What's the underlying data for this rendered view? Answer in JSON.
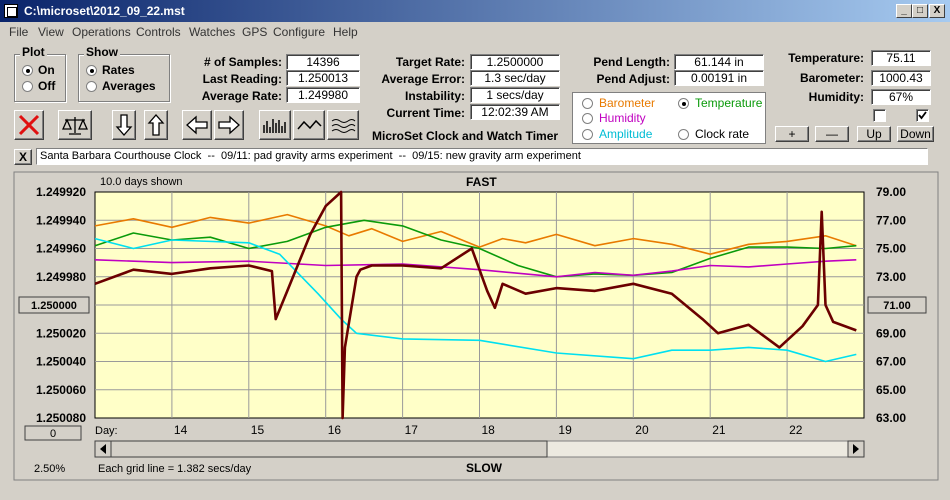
{
  "window": {
    "title": "C:\\microset\\2012_09_22.mst",
    "min": "_",
    "max": "□",
    "close": "X"
  },
  "menu": [
    "File",
    "View",
    "Operations",
    "Controls",
    "Watches",
    "GPS",
    "Configure",
    "Help"
  ],
  "plot": {
    "label": "Plot",
    "on": "On",
    "off": "Off",
    "selected": "On"
  },
  "show": {
    "label": "Show",
    "rates": "Rates",
    "averages": "Averages",
    "selected": "Rates"
  },
  "stats": {
    "samples_label": "# of Samples:",
    "samples": "14396",
    "last_label": "Last Reading:",
    "last": "1.250013",
    "avg_label": "Average Rate:",
    "avg": "1.249980"
  },
  "rates": {
    "target_label": "Target Rate:",
    "target": "1.2500000",
    "error_label": "Average Error:",
    "error": "1.3 sec/day",
    "instab_label": "Instability:",
    "instab": "1 secs/day",
    "time_label": "Current Time:",
    "time": "12:02:39 AM"
  },
  "pend": {
    "length_label": "Pend Length:",
    "length": "61.144 in",
    "adjust_label": "Pend Adjust:",
    "adjust": "0.00191 in"
  },
  "env": {
    "temp_label": "Temperature:",
    "temp": "75.11",
    "baro_label": "Barometer:",
    "baro": "1000.43",
    "hum_label": "Humidity:",
    "hum": "67%"
  },
  "sensors": [
    {
      "name": "Barometer",
      "color": "#e87a00",
      "selected": false
    },
    {
      "name": "Temperature",
      "color": "#0a9a0a",
      "selected": true
    },
    {
      "name": "Humidity",
      "color": "#c000c0",
      "selected": false
    },
    {
      "name": "Clock rate",
      "color": "#000000",
      "selected": false
    },
    {
      "name": "Amplitude",
      "color": "#00bcd4",
      "selected": false
    }
  ],
  "app_title": "MicroSet Clock and Watch Timer",
  "right_buttons": {
    "plus": "+",
    "minus": "—",
    "up": "Up",
    "down": "Down"
  },
  "checks": {
    "left": false,
    "right": true
  },
  "notes": "Santa Barbara Courthouse Clock  --  09/11: pad gravity arms experiment  --  09/15: new gravity arm experiment",
  "notes_close": "X",
  "chart_labels": {
    "days_shown": "10.0 days shown",
    "fast": "FAST",
    "slow": "SLOW",
    "grid_note": "Each grid line = 1.382 secs/day",
    "percent": "2.50%",
    "left_center": "1.250000",
    "right_center": "71.00",
    "zero_btn": "0",
    "day_prefix": "Day:"
  },
  "chart_data": {
    "type": "line",
    "x_ticks": [
      "14",
      "15",
      "16",
      "17",
      "18",
      "19",
      "20",
      "21",
      "22"
    ],
    "y_left_ticks": [
      "1.249920",
      "1.249940",
      "1.249960",
      "1.249980",
      "1.250000",
      "1.250020",
      "1.250040",
      "1.250060",
      "1.250080"
    ],
    "y_right_ticks": [
      "79.00",
      "77.00",
      "75.00",
      "73.00",
      "71.00",
      "69.00",
      "67.00",
      "65.00",
      "63.00"
    ],
    "x_range": [
      13.0,
      23.0
    ],
    "left_range": [
      1.24992,
      1.25008
    ],
    "right_range": [
      63,
      79
    ],
    "series": [
      {
        "name": "Barometer",
        "color": "#e87a00",
        "x": [
          13.0,
          13.5,
          14.0,
          14.5,
          15.0,
          15.5,
          16.0,
          16.3,
          16.6,
          17.0,
          17.5,
          18.0,
          18.3,
          18.6,
          19.0,
          19.5,
          20.0,
          20.5,
          21.0,
          21.5,
          22.0,
          22.5,
          22.9
        ],
        "y": [
          76.6,
          77.1,
          76.5,
          77.2,
          76.8,
          77.4,
          76.6,
          75.9,
          76.4,
          75.5,
          76.2,
          75.1,
          75.7,
          75.4,
          76.0,
          75.2,
          75.7,
          75.3,
          74.6,
          75.3,
          75.5,
          75.9,
          75.2
        ]
      },
      {
        "name": "Temperature",
        "color": "#0a9a0a",
        "x": [
          13.0,
          13.5,
          14.0,
          14.5,
          15.0,
          15.5,
          16.0,
          16.5,
          17.0,
          17.5,
          18.0,
          18.5,
          19.0,
          19.5,
          20.0,
          20.5,
          21.0,
          21.5,
          22.0,
          22.5,
          22.9
        ],
        "y": [
          75.2,
          76.1,
          75.6,
          75.8,
          75.0,
          75.5,
          76.5,
          77.0,
          76.6,
          75.6,
          75.0,
          73.8,
          73.0,
          73.2,
          73.1,
          73.3,
          74.3,
          75.1,
          75.1,
          75.0,
          75.2
        ]
      },
      {
        "name": "Humidity",
        "color": "#c000c0",
        "x": [
          13.0,
          14.0,
          15.0,
          16.0,
          17.0,
          18.0,
          19.0,
          19.5,
          20.0,
          20.5,
          21.0,
          21.5,
          22.0,
          22.5,
          22.9
        ],
        "y": [
          74.2,
          74.0,
          74.1,
          73.8,
          73.9,
          73.5,
          73.0,
          73.3,
          73.1,
          73.4,
          73.8,
          73.7,
          73.9,
          74.1,
          74.2
        ]
      },
      {
        "name": "Amplitude",
        "color": "#00e0f0",
        "x": [
          13.0,
          13.5,
          14.0,
          15.0,
          15.4,
          15.9,
          16.2,
          16.4,
          17.0,
          18.0,
          19.0,
          20.0,
          20.5,
          21.0,
          21.5,
          22.0,
          22.5,
          22.9
        ],
        "y": [
          75.7,
          75.0,
          75.6,
          75.4,
          74.6,
          71.8,
          70.0,
          69.0,
          68.6,
          68.5,
          67.6,
          67.2,
          67.8,
          67.8,
          68.0,
          67.8,
          67.0,
          67.5
        ]
      },
      {
        "name": "Clock rate",
        "color": "#6b0000",
        "x": [
          13.0,
          13.5,
          14.0,
          14.5,
          15.0,
          15.3,
          15.35,
          15.5,
          15.8,
          16.0,
          16.2,
          16.22,
          16.25,
          16.4,
          16.45,
          16.6,
          17.0,
          17.5,
          17.9,
          18.1,
          18.2,
          18.3,
          18.6,
          19.0,
          19.5,
          20.0,
          20.5,
          20.9,
          21.1,
          21.5,
          21.9,
          22.2,
          22.4,
          22.45,
          22.5,
          22.6,
          22.9
        ],
        "y": [
          1.249985,
          1.249975,
          1.249978,
          1.249974,
          1.249972,
          1.249976,
          1.25001,
          1.24999,
          1.24995,
          1.24993,
          1.24992,
          1.25008,
          1.25003,
          1.24998,
          1.249975,
          1.249972,
          1.249972,
          1.249974,
          1.24996,
          1.24999,
          1.250002,
          1.249985,
          1.249992,
          1.249988,
          1.24999,
          1.249985,
          1.249992,
          1.25001,
          1.25002,
          1.250014,
          1.25003,
          1.250015,
          1.25,
          1.249934,
          1.25,
          1.250012,
          1.250018
        ]
      }
    ]
  }
}
